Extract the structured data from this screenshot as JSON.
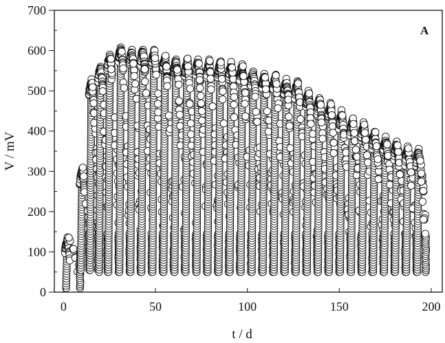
{
  "chart_data": {
    "type": "scatter",
    "panel_label": "A",
    "xlabel": "t / d",
    "ylabel": "V / mV",
    "xlim": [
      -5,
      206
    ],
    "ylim": [
      0,
      700
    ],
    "xticks": [
      0,
      50,
      100,
      150,
      200
    ],
    "yticks": [
      0,
      100,
      200,
      300,
      400,
      500,
      600,
      700
    ],
    "grid": false,
    "marker": "open-circle",
    "marker_color": "#111111",
    "cycles": [
      {
        "t": 2,
        "peak": 140,
        "min": 10
      },
      {
        "t": 10,
        "peak": 310,
        "min": 55
      },
      {
        "t": 15,
        "peak": 530,
        "min": 55
      },
      {
        "t": 20,
        "peak": 565,
        "min": 50
      },
      {
        "t": 25,
        "peak": 595,
        "min": 50
      },
      {
        "t": 31,
        "peak": 612,
        "min": 50
      },
      {
        "t": 37,
        "peak": 605,
        "min": 50
      },
      {
        "t": 43,
        "peak": 607,
        "min": 50
      },
      {
        "t": 49,
        "peak": 602,
        "min": 50
      },
      {
        "t": 55,
        "peak": 588,
        "min": 50
      },
      {
        "t": 61,
        "peak": 582,
        "min": 50
      },
      {
        "t": 67,
        "peak": 580,
        "min": 50
      },
      {
        "t": 73,
        "peak": 580,
        "min": 50
      },
      {
        "t": 79,
        "peak": 578,
        "min": 50
      },
      {
        "t": 85,
        "peak": 576,
        "min": 50
      },
      {
        "t": 91,
        "peak": 572,
        "min": 50
      },
      {
        "t": 97,
        "peak": 568,
        "min": 50
      },
      {
        "t": 103,
        "peak": 552,
        "min": 50
      },
      {
        "t": 109,
        "peak": 546,
        "min": 50
      },
      {
        "t": 115,
        "peak": 540,
        "min": 50
      },
      {
        "t": 121,
        "peak": 532,
        "min": 50
      },
      {
        "t": 127,
        "peak": 526,
        "min": 50
      },
      {
        "t": 133,
        "peak": 500,
        "min": 50
      },
      {
        "t": 139,
        "peak": 486,
        "min": 50
      },
      {
        "t": 145,
        "peak": 470,
        "min": 50
      },
      {
        "t": 151,
        "peak": 452,
        "min": 50
      },
      {
        "t": 157,
        "peak": 432,
        "min": 50
      },
      {
        "t": 163,
        "peak": 422,
        "min": 50
      },
      {
        "t": 169,
        "peak": 402,
        "min": 50
      },
      {
        "t": 175,
        "peak": 386,
        "min": 50
      },
      {
        "t": 181,
        "peak": 376,
        "min": 50
      },
      {
        "t": 187,
        "peak": 362,
        "min": 50
      },
      {
        "t": 193,
        "peak": 358,
        "min": 50
      }
    ]
  }
}
